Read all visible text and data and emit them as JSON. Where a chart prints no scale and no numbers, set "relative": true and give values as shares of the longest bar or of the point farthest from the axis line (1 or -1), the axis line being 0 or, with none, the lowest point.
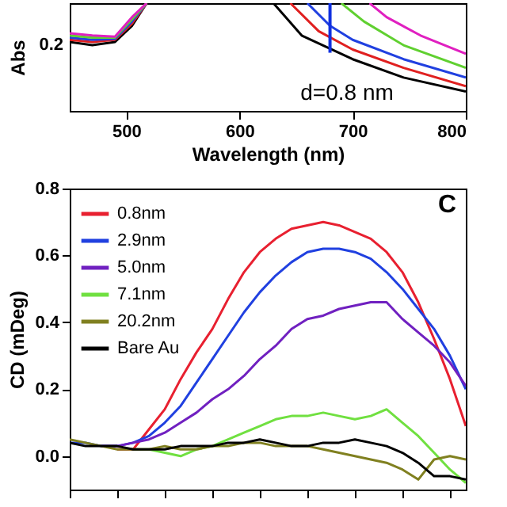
{
  "chart_data": [
    {
      "type": "line",
      "relative": true,
      "xlabel": "Wavelength (nm)",
      "ylabel": "Abs",
      "xlim": [
        450,
        800
      ],
      "xticks": [
        500,
        600,
        700,
        800
      ],
      "grid": false,
      "legend": false,
      "series": [
        {
          "color": "#000000",
          "x": [
            450,
            470,
            490,
            505,
            518,
            575,
            630,
            655,
            700,
            745,
            800
          ],
          "values": [
            0.64,
            0.61,
            0.64,
            0.79,
            1,
            null,
            1,
            0.7,
            0.48,
            0.31,
            0.18
          ]
        },
        {
          "color": "#e02020",
          "x": [
            450,
            470,
            490,
            505,
            518,
            575,
            645,
            670,
            700,
            745,
            800
          ],
          "values": [
            0.66,
            0.64,
            0.66,
            0.81,
            1,
            null,
            1,
            0.74,
            0.57,
            0.4,
            0.23
          ]
        },
        {
          "color": "#2040e0",
          "x": [
            450,
            470,
            490,
            505,
            518,
            575,
            660,
            680,
            700,
            745,
            800
          ],
          "values": [
            0.68,
            0.66,
            0.67,
            0.83,
            1,
            null,
            1,
            0.79,
            0.66,
            0.48,
            0.31
          ]
        },
        {
          "color": "#60d030",
          "x": [
            450,
            470,
            490,
            505,
            518,
            575,
            690,
            710,
            745,
            800
          ],
          "values": [
            0.7,
            0.68,
            0.68,
            0.85,
            1,
            null,
            1,
            0.83,
            0.61,
            0.4
          ]
        },
        {
          "color": "#e020c0",
          "x": [
            450,
            470,
            490,
            505,
            518,
            575,
            715,
            730,
            760,
            800
          ],
          "values": [
            0.72,
            0.7,
            0.69,
            0.87,
            1,
            null,
            1,
            0.87,
            0.7,
            0.53
          ]
        }
      ],
      "ref_lines": [
        {
          "axis": "x",
          "value": 680,
          "color": "#1030e0"
        }
      ],
      "annotations": [
        "d=0.8 nm",
        "0.2"
      ]
    },
    {
      "type": "line",
      "ylabel": "CD (mDeg)",
      "categories": [
        null,
        null,
        null,
        null,
        null,
        null,
        null,
        null,
        null,
        null,
        null,
        null,
        null,
        null,
        null,
        null,
        null,
        null,
        null,
        null,
        null,
        null,
        null,
        null,
        null,
        null
      ],
      "ylim": [
        -0.1,
        0.8
      ],
      "yticks": [
        {
          "value": 0,
          "label": "0.0"
        },
        0.2,
        0.4,
        0.6,
        0.8
      ],
      "grid": false,
      "legend": "top left",
      "tick_labels": "y",
      "series": [
        {
          "name": "0.8nm",
          "color": "#e82030",
          "values": [
            null,
            null,
            null,
            0.02,
            0.02,
            0.08,
            0.14,
            0.23,
            0.31,
            0.38,
            0.47,
            0.55,
            0.61,
            0.65,
            0.68,
            0.69,
            0.7,
            0.69,
            0.67,
            0.65,
            0.61,
            0.55,
            0.46,
            0.35,
            0.23,
            0.09
          ]
        },
        {
          "name": "2.9nm",
          "color": "#2040e0",
          "values": [
            0.04,
            0.04,
            0.03,
            0.03,
            0.04,
            0.06,
            0.1,
            0.15,
            0.22,
            0.29,
            0.36,
            0.43,
            0.49,
            0.54,
            0.58,
            0.61,
            0.62,
            0.62,
            0.61,
            0.59,
            0.55,
            0.5,
            0.44,
            0.38,
            0.3,
            0.2
          ]
        },
        {
          "name": "5.0nm",
          "color": "#7020c0",
          "values": [
            null,
            null,
            0.03,
            0.03,
            0.04,
            0.05,
            0.07,
            0.1,
            0.13,
            0.17,
            0.2,
            0.24,
            0.29,
            0.33,
            0.38,
            0.41,
            0.42,
            0.44,
            0.45,
            0.46,
            0.46,
            0.41,
            0.37,
            0.33,
            0.28,
            0.21
          ]
        },
        {
          "name": "7.1nm",
          "color": "#70e040",
          "values": [
            null,
            null,
            null,
            null,
            0.02,
            0.02,
            0.01,
            0.0,
            0.02,
            0.03,
            0.05,
            0.07,
            0.09,
            0.11,
            0.12,
            0.12,
            0.13,
            0.12,
            0.11,
            0.12,
            0.14,
            0.1,
            0.06,
            0.01,
            -0.04,
            -0.08
          ]
        },
        {
          "name": "20.2nm",
          "color": "#808020",
          "values": [
            0.05,
            0.04,
            0.03,
            0.02,
            0.02,
            0.02,
            0.03,
            0.02,
            0.02,
            0.03,
            0.03,
            0.04,
            0.04,
            0.03,
            0.03,
            0.03,
            0.02,
            0.01,
            0.0,
            -0.01,
            -0.02,
            -0.04,
            -0.07,
            -0.01,
            0.0,
            -0.01
          ]
        },
        {
          "name": "Bare Au",
          "color": "#000000",
          "values": [
            0.04,
            0.03,
            0.03,
            0.03,
            0.02,
            0.02,
            0.02,
            0.03,
            0.03,
            0.03,
            0.04,
            0.04,
            0.05,
            0.04,
            0.03,
            0.03,
            0.04,
            0.04,
            0.05,
            0.04,
            0.03,
            0.01,
            -0.02,
            -0.06,
            -0.06,
            -0.07
          ]
        }
      ],
      "annotations": [
        "C"
      ]
    }
  ]
}
